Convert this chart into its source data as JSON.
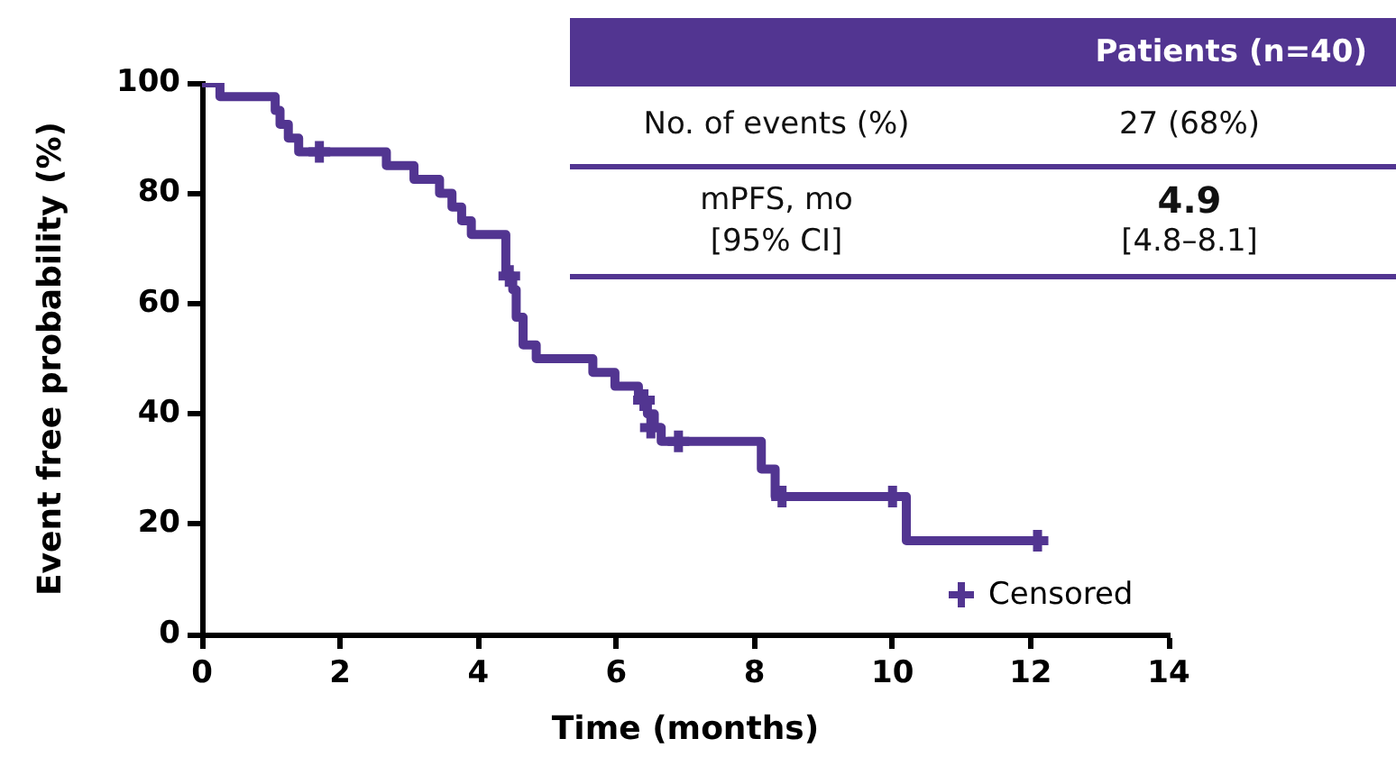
{
  "chart_data": {
    "type": "step",
    "xlabel": "Time (months)",
    "ylabel": "Event free probability (%)",
    "xlim": [
      0,
      14
    ],
    "xticks": [
      0,
      2,
      4,
      6,
      8,
      10,
      12,
      14
    ],
    "ylim": [
      0,
      100
    ],
    "yticks": [
      0,
      20,
      40,
      60,
      80,
      100
    ],
    "grid": false,
    "legend": "bottom right",
    "line_style": "solid",
    "series": [
      {
        "color": "#523591",
        "marker": "none",
        "x": [
          0,
          0.26,
          1.06,
          1.13,
          1.25,
          1.4,
          2.67,
          3.07,
          3.44,
          3.62,
          3.76,
          3.9,
          4.4,
          4.5,
          4.55,
          4.65,
          4.84,
          5.66,
          5.98,
          6.32,
          6.45,
          6.55,
          6.65,
          8.1,
          8.3,
          10.2,
          12.1
        ],
        "values": [
          100,
          97.5,
          95,
          92.5,
          90,
          87.5,
          85,
          82.5,
          80,
          77.5,
          75,
          72.5,
          65,
          62.5,
          57.5,
          52.5,
          50,
          47.5,
          45,
          42.5,
          40,
          37.5,
          35,
          30,
          25,
          17,
          17
        ]
      },
      {
        "type": "scatter",
        "name": "Censored",
        "color": "#523591",
        "marker": "cross",
        "x": [
          1.7,
          4.45,
          6.4,
          6.5,
          6.9,
          8.4,
          10.0,
          12.1
        ],
        "values": [
          87.5,
          65,
          42.5,
          37.5,
          35,
          25,
          25,
          17
        ]
      }
    ],
    "annotations": [
      "Patients (n=40)",
      "No. of events (%)",
      "27 (68%)",
      "mPFS, mo\n[95% CI]",
      "4.9",
      "[4.8–8.1]"
    ]
  }
}
